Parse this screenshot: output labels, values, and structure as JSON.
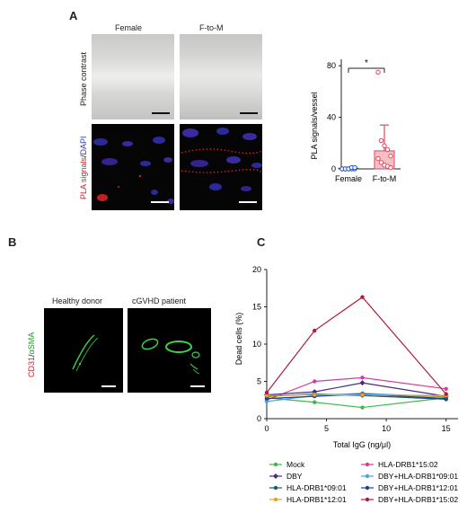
{
  "panelA": {
    "letter": "A",
    "col_female": "Female",
    "col_ftom": "F-to-M",
    "row_phase": "Phase contrast",
    "row_pla_part1": "PLA signals",
    "row_pla_sep": "/",
    "row_pla_part2": "DAPI",
    "chart_data": {
      "type": "bar",
      "categories": [
        "Female",
        "F-to-M"
      ],
      "values": [
        0.5,
        14
      ],
      "error": [
        0.8,
        20
      ],
      "points": {
        "Female": [
          0,
          0,
          0,
          0,
          0,
          0,
          0,
          0,
          1,
          1
        ],
        "F-to-M": [
          75,
          22,
          18,
          15,
          10,
          8,
          5,
          3,
          2,
          1
        ]
      },
      "ylabel": "PLA signals/vessel",
      "yticks": [
        0,
        40,
        80
      ],
      "ylim": [
        0,
        85
      ],
      "significance": "*",
      "colors": {
        "Female": "#1f4fb8",
        "F-to-M": "#e0475a"
      }
    }
  },
  "panelB": {
    "letter": "B",
    "label_healthy": "Healthy donor",
    "label_cgvhd": "cGVHD patient",
    "row_part1": "CD31",
    "row_sep": "/",
    "row_part2": "αSMA"
  },
  "panelC": {
    "letter": "C",
    "chart_data": {
      "type": "line",
      "xlabel": "Total IgG (ng/μl)",
      "ylabel": "Dead cells (%)",
      "x": [
        0,
        4,
        8,
        15
      ],
      "xticks": [
        0,
        5,
        10,
        15
      ],
      "yticks": [
        0,
        5,
        10,
        15,
        20
      ],
      "xlim": [
        0,
        16
      ],
      "ylim": [
        0,
        20
      ],
      "series": [
        {
          "name": "Mock",
          "color": "#3db84a",
          "marker": "circle",
          "values": [
            2.8,
            2.2,
            1.5,
            2.8
          ]
        },
        {
          "name": "HLA-DRB1*15:02",
          "color": "#d63aa0",
          "marker": "circle",
          "values": [
            2.5,
            5.0,
            5.5,
            4.0
          ]
        },
        {
          "name": "DBY",
          "color": "#4b2a82",
          "marker": "diamond",
          "values": [
            3.2,
            3.6,
            4.8,
            3.0
          ]
        },
        {
          "name": "DBY+HLA-DRB1*09:01",
          "color": "#4ba3d8",
          "marker": "circle",
          "values": [
            2.3,
            3.1,
            3.4,
            2.9
          ]
        },
        {
          "name": "HLA-DRB1*09:01",
          "color": "#1e5a5a",
          "marker": "circle",
          "values": [
            3.0,
            3.3,
            3.1,
            2.6
          ]
        },
        {
          "name": "DBY+HLA-DRB1*12:01",
          "color": "#1f3f8f",
          "marker": "circle",
          "values": [
            2.7,
            3.0,
            3.3,
            2.7
          ]
        },
        {
          "name": "HLA-DRB1*12:01",
          "color": "#e8a221",
          "marker": "circle",
          "values": [
            3.1,
            3.2,
            3.2,
            3.1
          ]
        },
        {
          "name": "DBY+HLA-DRB1*15:02",
          "color": "#b01d3a",
          "marker": "circle",
          "values": [
            3.5,
            11.8,
            16.3,
            3.3
          ]
        }
      ]
    }
  }
}
